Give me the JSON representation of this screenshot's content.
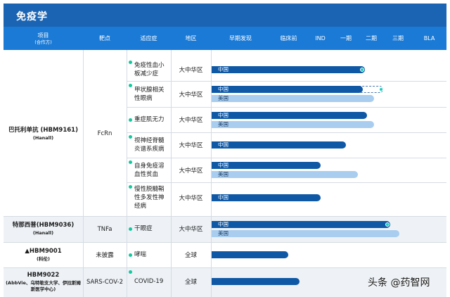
{
  "page_title": "免疫学",
  "columns": {
    "project": "项目",
    "project_sub": "(合作方)",
    "target": "靶点",
    "indication": "适应症",
    "region": "地区",
    "early_discovery": "早期发现",
    "preclinical": "临床前",
    "ind": "IND",
    "phase1": "一期",
    "phase2": "二期",
    "phase3": "三期",
    "bla": "BLA"
  },
  "programs": [
    {
      "name": "巴托利单抗 (HBM9161)",
      "partner": "(Hanall)",
      "target": "FcRn",
      "indications": [
        {
          "name": "免疫性血小板减少症",
          "region": "大中华区",
          "bars": [
            {
              "label": "中国",
              "kind": "china",
              "progress": 0.66,
              "marker": true
            }
          ]
        },
        {
          "name": "甲状腺相关性眼病",
          "region": "大中华区",
          "bars": [
            {
              "label": "中国",
              "kind": "china",
              "progress": 0.65,
              "marker": false,
              "extension": 0.74
            },
            {
              "label": "美国",
              "kind": "us",
              "progress": 0.7
            }
          ]
        },
        {
          "name": "重症肌无力",
          "region": "大中华区",
          "bars": [
            {
              "label": "中国",
              "kind": "china",
              "progress": 0.67
            },
            {
              "label": "美国",
              "kind": "us",
              "progress": 0.7
            }
          ]
        },
        {
          "name": "视神经脊髓炎谱系疾病",
          "region": "大中华区",
          "bars": [
            {
              "label": "中国",
              "kind": "china",
              "progress": 0.58
            }
          ]
        },
        {
          "name": "自身免疫溶血性贫血",
          "region": "大中华区",
          "bars": [
            {
              "label": "中国",
              "kind": "china",
              "progress": 0.47
            },
            {
              "label": "美国",
              "kind": "us",
              "progress": 0.63
            }
          ]
        },
        {
          "name": "慢性脱髓鞘性多发性神经病",
          "region": "大中华区",
          "bars": [
            {
              "label": "中国",
              "kind": "china",
              "progress": 0.47
            }
          ]
        }
      ]
    },
    {
      "name": "特那西普(HBM9036)",
      "partner": "(Hanall)",
      "target": "TNFa",
      "indications": [
        {
          "name": "干眼症",
          "region": "大中华区",
          "bars": [
            {
              "label": "中国",
              "kind": "china",
              "progress": 0.77,
              "marker": true
            },
            {
              "label": "美国",
              "kind": "us",
              "progress": 0.81
            }
          ]
        }
      ]
    },
    {
      "name": "▲HBM9001",
      "partner": "(科伦)",
      "target": "未披露",
      "indications": [
        {
          "name": "哮喘",
          "region": "全球",
          "bars": [
            {
              "label": "",
              "kind": "china",
              "progress": 0.33
            }
          ]
        }
      ]
    },
    {
      "name": "HBM9022",
      "partner": "(AbbVie、乌特勒支大学、伊拉斯姆斯医学中心)",
      "target": "SARS-COV-2",
      "indications": [
        {
          "name": "COVID-19",
          "region": "全球",
          "bars": [
            {
              "label": "",
              "kind": "china",
              "progress": 0.38
            }
          ]
        }
      ]
    }
  ],
  "watermark": "头条 @药智网",
  "colors": {
    "title_bar": "#1a64b3",
    "header": "#1a7ad6",
    "china_bar": "#0f58a6",
    "us_bar": "#a9cdef",
    "indication_dot": "#13c89c",
    "progress_marker": "#17d0c0"
  }
}
